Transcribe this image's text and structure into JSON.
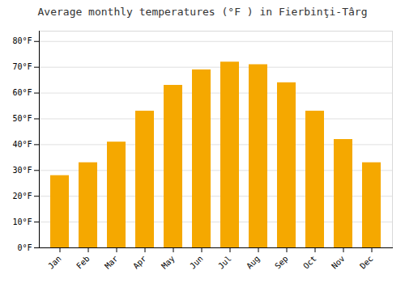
{
  "chart_data": {
    "type": "bar",
    "title": "Average monthly temperatures (°F ) in Fierbinţi-Târg",
    "categories": [
      "Jan",
      "Feb",
      "Mar",
      "Apr",
      "May",
      "Jun",
      "Jul",
      "Aug",
      "Sep",
      "Oct",
      "Nov",
      "Dec"
    ],
    "values": [
      28,
      33,
      41,
      53,
      63,
      69,
      72,
      71,
      64,
      53,
      42,
      33
    ],
    "color": "#F5A800",
    "ylim": [
      0,
      84
    ],
    "yticks": [
      {
        "value": 0,
        "label": "0°F"
      },
      {
        "value": 10,
        "label": "10°F"
      },
      {
        "value": 20,
        "label": "20°F"
      },
      {
        "value": 30,
        "label": "30°F"
      },
      {
        "value": 40,
        "label": "40°F"
      },
      {
        "value": 50,
        "label": "50°F"
      },
      {
        "value": 60,
        "label": "60°F"
      },
      {
        "value": 70,
        "label": "70°F"
      },
      {
        "value": 80,
        "label": "80°F"
      }
    ],
    "grid": true
  }
}
